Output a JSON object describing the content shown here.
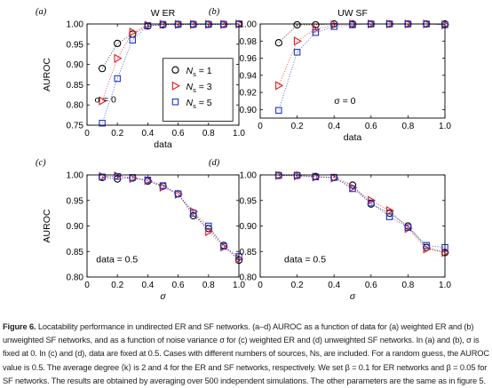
{
  "colors": {
    "n1": "#000000",
    "n3": "#e0191c",
    "n5": "#1d35c9"
  },
  "panels": [
    {
      "label": "(a)",
      "title": "W ER",
      "xlabel": "data",
      "ylabel": "AUROC",
      "annotation": "σ = 0",
      "ylim": [
        0.75,
        1.0
      ],
      "xlim": [
        0.0,
        1.0
      ],
      "yticks": [
        "0.75",
        "0.80",
        "0.85",
        "0.90",
        "0.95",
        "1.00"
      ],
      "xticks": [
        "0",
        "0.2",
        "0.4",
        "0.6",
        "0.8",
        "1.0"
      ],
      "show_legend": true
    },
    {
      "label": "(b)",
      "title": "UW SF",
      "xlabel": "data",
      "ylabel": "",
      "annotation": "σ = 0",
      "ylim": [
        0.89,
        1.0
      ],
      "xlim": [
        0.0,
        1.0
      ],
      "yticks": [
        "0.90",
        "0.92",
        "0.94",
        "0.96",
        "0.98",
        "1.00"
      ],
      "xticks": [
        "0",
        "0.2",
        "0.4",
        "0.6",
        "0.8",
        "1.0"
      ],
      "show_legend": false
    },
    {
      "label": "(c)",
      "title": "",
      "xlabel": "σ",
      "ylabel": "AUROC",
      "annotation": "data = 0.5",
      "ylim": [
        0.8,
        1.0
      ],
      "xlim": [
        0.0,
        1.0
      ],
      "yticks": [
        "0.80",
        "0.85",
        "0.90",
        "0.95",
        "1.00"
      ],
      "xticks": [
        "0",
        "0.2",
        "0.4",
        "0.6",
        "0.8",
        "1.0"
      ],
      "show_legend": false
    },
    {
      "label": "(d)",
      "title": "",
      "xlabel": "σ",
      "ylabel": "",
      "annotation": "data = 0.5",
      "ylim": [
        0.8,
        1.0
      ],
      "xlim": [
        0.0,
        1.0
      ],
      "yticks": [
        "0.80",
        "0.85",
        "0.90",
        "0.95",
        "1.00"
      ],
      "xticks": [
        "0",
        "0.2",
        "0.4",
        "0.6",
        "0.8",
        "1.0"
      ],
      "show_legend": false
    }
  ],
  "legend": {
    "entries": [
      {
        "sym": "N",
        "sub": "s",
        "rest": " = 1",
        "marker": "circle",
        "color": "#000000"
      },
      {
        "sym": "N",
        "sub": "s",
        "rest": " = 3",
        "marker": "triangle",
        "color": "#e0191c"
      },
      {
        "sym": "N",
        "sub": "s",
        "rest": " = 5",
        "marker": "square",
        "color": "#1d35c9"
      }
    ]
  },
  "chart_data": [
    {
      "type": "scatter",
      "panel": "(a)",
      "title": "W ER",
      "xlabel": "data",
      "ylabel": "AUROC",
      "x": [
        0.1,
        0.2,
        0.3,
        0.4,
        0.5,
        0.6,
        0.7,
        0.8,
        0.9,
        1.0
      ],
      "series": [
        {
          "name": "Ns = 1",
          "marker": "circle",
          "values": [
            0.89,
            0.952,
            0.975,
            0.995,
            0.998,
            0.999,
            0.999,
            0.999,
            0.999,
            1.0
          ]
        },
        {
          "name": "Ns = 3",
          "marker": "triangle",
          "values": [
            0.81,
            0.915,
            0.98,
            0.997,
            0.999,
            0.999,
            0.999,
            0.999,
            0.999,
            1.0
          ]
        },
        {
          "name": "Ns = 5",
          "marker": "square",
          "values": [
            0.755,
            0.865,
            0.96,
            0.996,
            0.999,
            0.999,
            0.999,
            0.999,
            0.999,
            1.0
          ]
        }
      ]
    },
    {
      "type": "scatter",
      "panel": "(b)",
      "title": "UW SF",
      "xlabel": "data",
      "ylabel": "",
      "x": [
        0.1,
        0.2,
        0.3,
        0.4,
        0.5,
        0.6,
        0.7,
        0.8,
        0.9,
        1.0
      ],
      "series": [
        {
          "name": "Ns = 1",
          "marker": "circle",
          "values": [
            0.978,
            0.999,
            0.999,
            1.0,
            1.0,
            1.0,
            1.0,
            1.0,
            1.0,
            1.0
          ]
        },
        {
          "name": "Ns = 3",
          "marker": "triangle",
          "values": [
            0.928,
            0.98,
            0.994,
            0.999,
            1.0,
            1.0,
            1.0,
            1.0,
            1.0,
            0.999
          ]
        },
        {
          "name": "Ns = 5",
          "marker": "square",
          "values": [
            0.899,
            0.967,
            0.99,
            0.997,
            0.999,
            1.0,
            1.0,
            1.0,
            1.0,
            0.999
          ]
        }
      ]
    },
    {
      "type": "scatter",
      "panel": "(c)",
      "title": "",
      "xlabel": "σ",
      "ylabel": "AUROC",
      "x": [
        0.1,
        0.2,
        0.3,
        0.4,
        0.5,
        0.6,
        0.7,
        0.8,
        0.9,
        1.0
      ],
      "series": [
        {
          "name": "Ns = 1",
          "marker": "circle",
          "values": [
            0.995,
            0.992,
            0.994,
            0.988,
            0.978,
            0.963,
            0.92,
            0.895,
            0.862,
            0.833
          ]
        },
        {
          "name": "Ns = 3",
          "marker": "triangle",
          "values": [
            0.997,
            0.998,
            0.993,
            0.989,
            0.976,
            0.962,
            0.928,
            0.889,
            0.859,
            0.836
          ]
        },
        {
          "name": "Ns = 5",
          "marker": "square",
          "values": [
            0.996,
            0.997,
            0.995,
            0.99,
            0.979,
            0.963,
            0.925,
            0.9,
            0.86,
            0.84
          ]
        }
      ]
    },
    {
      "type": "scatter",
      "panel": "(d)",
      "title": "",
      "xlabel": "σ",
      "ylabel": "",
      "x": [
        0.1,
        0.2,
        0.3,
        0.4,
        0.5,
        0.6,
        0.7,
        0.8,
        0.9,
        1.0
      ],
      "series": [
        {
          "name": "Ns = 1",
          "marker": "circle",
          "values": [
            0.999,
            0.999,
            0.997,
            0.995,
            0.98,
            0.943,
            0.925,
            0.9,
            0.858,
            0.848
          ]
        },
        {
          "name": "Ns = 3",
          "marker": "triangle",
          "values": [
            0.999,
            0.998,
            0.996,
            0.994,
            0.975,
            0.95,
            0.93,
            0.895,
            0.855,
            0.848
          ]
        },
        {
          "name": "Ns = 5",
          "marker": "square",
          "values": [
            0.999,
            0.999,
            0.996,
            0.995,
            0.973,
            0.945,
            0.918,
            0.897,
            0.862,
            0.858
          ]
        }
      ]
    }
  ],
  "caption": {
    "label": "Figure 6.",
    "text": " Locatability performance in undirected ER and SF networks. (a–d) AUROC as a function of data for (a) weighted ER and (b) unweighted SF networks, and as a function of noise variance σ for (c) weighted ER and (d) unweighted SF networks. In (a) and (b), σ is fixed at 0. In (c) and (d), data are fixed at 0.5. Cases with different numbers of sources, Ns, are included. For a random guess, the AUROC value is 0.5. The average degree ⟨k⟩ is 2 and 4 for the ER and SF networks, respectively. We set β = 0.1 for ER networks and β = 0.05 for SF networks. The results are obtained by averaging over 500 independent simulations. The other parameters are the same as in figure 5."
  }
}
